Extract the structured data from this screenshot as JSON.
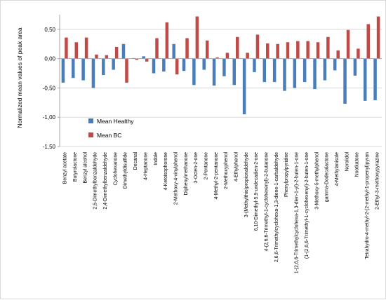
{
  "chart_data": {
    "type": "bar",
    "title": "",
    "xlabel": "",
    "ylabel": "Normalized mean values of peak area",
    "ylim": [
      -1.5,
      0.75
    ],
    "yticks": [
      "0,50",
      "0,00",
      "-0,50",
      "-1,00",
      "-1,50"
    ],
    "ytick_values": [
      0.5,
      0.0,
      -0.5,
      -1.0,
      -1.5
    ],
    "grid": true,
    "legend_position": "left-middle",
    "categories": [
      "Benzyl acetate",
      "Butyrolactone",
      "Benzyl alcohol",
      "2,5-Dimethylbenzaldehyde",
      "2,4-Dimethylbenzaldehyde",
      "Cyclohexanone",
      "Dimethyldisulfide",
      "Decanal",
      "4-Heptanone",
      "Indole",
      "4-Ketoisophorone",
      "2-Methoxy-4-vinylphenol",
      "Diphenylmethanone",
      "3-Octen-2-one",
      "2-Pentanone",
      "4-Methyl-2-pentanone",
      "2-Methoxyphenol",
      "4-Ethylphenol",
      "3-(Methylthio)propionaldehyde",
      "6,10-Dimethyl-5,9-undecadien-2-one",
      "4-(2,6,6-Trimethyl-1-cyclohexenyl)-2-butanone",
      "2,6,6-Trimethylcyclohexa-1,3-diene-1-carbaldehyde",
      "Phenylpropylpyridine",
      "1-(2,6,6-Trimethylcyclohexa-1,3-dien-1-yl)-2-buten-1-one",
      "(1-(2,6,6-Trimethyl-1-cyclohexenyl)-2-buten-1-one",
      "3-Methoxy-5-methylphenol",
      "gamma-Dodecalactone",
      "4-Methylanisole",
      "Nerolidol",
      "Nootkatone",
      "Tetrahydro-4-methyl-2-(2-methyl-1-propenyl)pyran",
      "2-Ethyl-3-methoxypyrazine"
    ],
    "series": [
      {
        "name": "Mean Healthy",
        "color": "#4a7ebb",
        "values": [
          -0.41,
          -0.33,
          -0.37,
          -0.5,
          -0.28,
          -0.19,
          0.25,
          0.01,
          0.04,
          -0.25,
          -0.22,
          0.25,
          -0.21,
          -0.45,
          -0.19,
          -0.46,
          -0.3,
          -0.45,
          -0.95,
          -0.23,
          -0.4,
          -0.4,
          -0.55,
          -0.5,
          -0.4,
          -0.52,
          -0.37,
          -0.2,
          -0.77,
          -0.29,
          -0.72,
          -0.71
        ]
      },
      {
        "name": "Mean BC",
        "color": "#be4b48",
        "values": [
          0.36,
          0.28,
          0.36,
          0.07,
          0.06,
          0.2,
          -0.41,
          -0.02,
          -0.05,
          0.35,
          0.62,
          -0.27,
          0.35,
          0.72,
          0.31,
          0.02,
          0.1,
          0.37,
          0.1,
          0.41,
          0.26,
          0.25,
          0.28,
          0.3,
          0.3,
          0.28,
          0.37,
          0.14,
          0.49,
          0.17,
          0.59,
          0.72
        ]
      }
    ]
  }
}
